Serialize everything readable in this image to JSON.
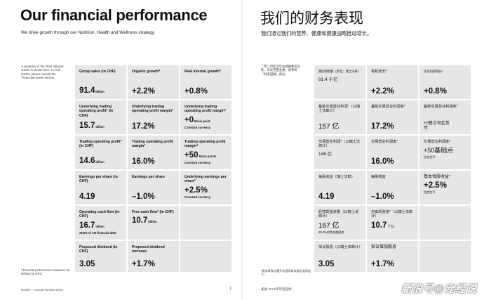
{
  "left": {
    "title": "Our financial performance",
    "subtitle": "We drive growth through our Nutrition, Health and Wellness strategy.",
    "side_note": "A summary of the 2024 full-year results is shown here. For full results, please consult the 'Financial review' section.",
    "footnote": "* Financial performance measures not defined by IFRS.",
    "footer": "Nestlé – Annual Review 2024",
    "page_number": "1",
    "cells": [
      {
        "label": "Group sales (in CHF)",
        "value": "91.4",
        "unit": "billion",
        "extra": ""
      },
      {
        "label": "Organic growth*",
        "value": "+2.2%",
        "unit": "",
        "extra": ""
      },
      {
        "label": "Real internal growth*",
        "value": "+0.8%",
        "unit": "",
        "extra": ""
      },
      {
        "label": "Underlying trading operating profit* (in CHF)",
        "value": "15.7",
        "unit": "billion",
        "extra": ""
      },
      {
        "label": "Underlying trading operating profit margin*",
        "value": "17.2%",
        "unit": "",
        "extra": ""
      },
      {
        "label": "Underlying trading operating profit margin*",
        "value": "+0",
        "unit": "Basis point",
        "extra": "Constant currency"
      },
      {
        "label": "Trading operating profit* (in CHF)",
        "value": "14.6",
        "unit": "billion",
        "extra": ""
      },
      {
        "label": "Trading operating profit margin*",
        "value": "16.0%",
        "unit": "",
        "extra": ""
      },
      {
        "label": "Trading operating profit margin*",
        "value": "+50",
        "unit": "Basis points",
        "extra": "Constant currency"
      },
      {
        "label": "Earnings per share (in CHF)",
        "value": "4.19",
        "unit": "",
        "extra": ""
      },
      {
        "label": "Earnings per share",
        "value": "–1.0%",
        "unit": "",
        "extra": ""
      },
      {
        "label": "Underlying earnings per share*",
        "value": "+2.5%",
        "unit": "",
        "extra": "Constant currency"
      },
      {
        "label": "Operating cash flow (in CHF)",
        "value": "16.7",
        "unit": "billion",
        "extra": "29.8% of net financial debt"
      },
      {
        "label": "Free cash flow* (in CHF)",
        "value": "10.7",
        "unit": "billion",
        "extra": ""
      },
      {
        "label": "",
        "value": "",
        "unit": "",
        "extra": ""
      },
      {
        "label": "Proposed dividend (in CHF)",
        "value": "3.05",
        "unit": "",
        "extra": ""
      },
      {
        "label": "Proposed dividend increase",
        "value": "+1.7%",
        "unit": "",
        "extra": ""
      },
      {
        "label": "",
        "value": "",
        "unit": "",
        "extra": ""
      }
    ]
  },
  "right": {
    "title": "我们的财务表现",
    "subtitle": "我们通过我们的营养、健康和健康战略推动增长。",
    "side_note": "二零二四年全年业绩摘要见此处。有关完整业绩，请参阅「财务回顾」部分。",
    "footnote": "*财务表现计量并非国际财务报告准则定义。",
    "footer": "雀巢 2024年年度回顾",
    "cells": [
      {
        "label": "集团销售额（单位：瑞士法郎）",
        "value": "91.4",
        "unit": "十亿",
        "extra": ""
      },
      {
        "label": "有机增长*",
        "value": "+2.2%",
        "unit": "",
        "extra": ""
      },
      {
        "label": "实际内部增长*",
        "value": "+0.8%",
        "unit": "",
        "extra": ""
      },
      {
        "label": "基础交易营业利润*（以瑞士法郎计）",
        "value": "157 亿",
        "unit": "",
        "extra": ""
      },
      {
        "label": "基础交易营业利润率*",
        "value": "17.2%",
        "unit": "",
        "extra": ""
      },
      {
        "label": "基础交易营业利润率*",
        "value": "+0基点恒定货币",
        "unit": "",
        "extra": ""
      },
      {
        "label": "交易营业利润*（以瑞士法郎计）",
        "value": "146 亿",
        "unit": "",
        "extra": ""
      },
      {
        "label": "交易营业利润率*",
        "value": "16.0%",
        "unit": "",
        "extra": ""
      },
      {
        "label": "交易营业利润率*",
        "value": "+50基础点",
        "unit": "",
        "extra": "恒定货币"
      },
      {
        "label": "每股收益（瑞士法郎）",
        "value": "4.19",
        "unit": "",
        "extra": ""
      },
      {
        "label": "每股收益",
        "value": "–1.0%",
        "unit": "",
        "extra": ""
      },
      {
        "label": "基本每股收益*",
        "value": "+2.5%",
        "unit": "",
        "extra": "恒定货币"
      },
      {
        "label": "经营现金流量（以瑞士法郎计）",
        "value": "167 亿",
        "unit": "",
        "extra": "29.8%的净金融债务"
      },
      {
        "label": "自由现金流*（以瑞士法郎计）",
        "value": "10.7",
        "unit": "十亿",
        "extra": ""
      },
      {
        "label": "",
        "value": "",
        "unit": "",
        "extra": ""
      },
      {
        "label": "拟议股息（以瑞士法郎计）",
        "value": "3.05",
        "unit": "",
        "extra": ""
      },
      {
        "label": "拟议增加股息",
        "value": "+1.7%",
        "unit": "",
        "extra": ""
      },
      {
        "label": "",
        "value": "",
        "unit": "",
        "extra": ""
      }
    ]
  },
  "watermark": "新浪号@宠经说",
  "colors": {
    "tile": "#e6e6e6",
    "page": "#ffffff",
    "gutter": "#f2f2f2"
  }
}
